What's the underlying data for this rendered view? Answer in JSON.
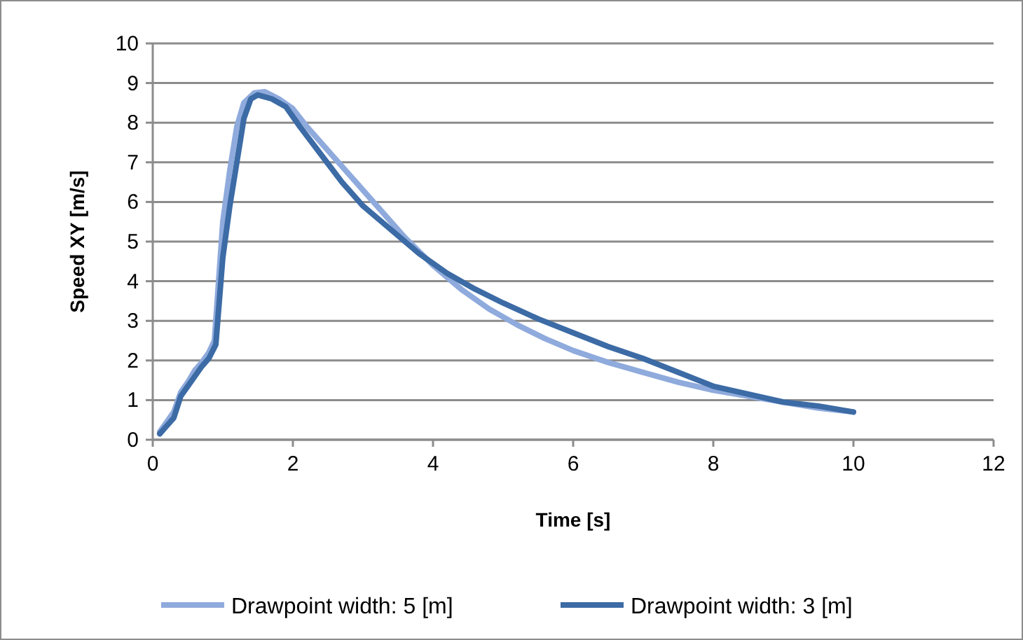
{
  "chart_data": {
    "type": "line",
    "xlabel": "Time [s]",
    "ylabel": "Speed XY [m/s]",
    "xlim": [
      0,
      12
    ],
    "xticks": [
      0,
      2,
      4,
      6,
      8,
      10,
      12
    ],
    "ylim": [
      0,
      10
    ],
    "yticks": [
      0,
      1,
      2,
      3,
      4,
      5,
      6,
      7,
      8,
      9,
      10
    ],
    "grid": "y",
    "legend": "bottom",
    "marker": "none",
    "line_style": "solid",
    "series": [
      {
        "name": "Drawpoint width: 5 [m]",
        "color": "#8faadc",
        "x": [
          0.1,
          0.2,
          0.3,
          0.4,
          0.5,
          0.6,
          0.7,
          0.8,
          0.88,
          0.92,
          1.0,
          1.1,
          1.2,
          1.3,
          1.45,
          1.6,
          1.8,
          2.0,
          2.2,
          2.5,
          2.8,
          3.2,
          3.6,
          4.0,
          4.4,
          4.8,
          5.2,
          5.6,
          6.0,
          6.5,
          7.0,
          7.5,
          8.0,
          8.5,
          9.0,
          9.5,
          10
        ],
        "values": [
          0.2,
          0.45,
          0.7,
          1.2,
          1.45,
          1.75,
          1.95,
          2.2,
          2.5,
          3.5,
          5.5,
          6.8,
          7.9,
          8.5,
          8.75,
          8.78,
          8.6,
          8.35,
          7.9,
          7.3,
          6.7,
          5.9,
          5.1,
          4.4,
          3.8,
          3.3,
          2.9,
          2.55,
          2.25,
          1.95,
          1.7,
          1.45,
          1.25,
          1.1,
          0.95,
          0.8,
          0.7
        ]
      },
      {
        "name": "Drawpoint width: 3 [m]",
        "color": "#3c6ba5",
        "x": [
          0.1,
          0.2,
          0.3,
          0.4,
          0.5,
          0.6,
          0.7,
          0.8,
          0.9,
          0.95,
          1.0,
          1.1,
          1.2,
          1.3,
          1.4,
          1.5,
          1.7,
          1.9,
          2.1,
          2.4,
          2.7,
          3.0,
          3.4,
          3.8,
          4.2,
          4.6,
          5.0,
          5.5,
          6.0,
          6.5,
          7.0,
          7.5,
          8.0,
          8.5,
          9.0,
          9.5,
          10
        ],
        "values": [
          0.15,
          0.35,
          0.55,
          1.1,
          1.35,
          1.6,
          1.85,
          2.05,
          2.4,
          3.5,
          4.6,
          5.9,
          7.0,
          8.1,
          8.6,
          8.7,
          8.6,
          8.4,
          7.9,
          7.2,
          6.5,
          5.9,
          5.3,
          4.7,
          4.2,
          3.8,
          3.45,
          3.05,
          2.7,
          2.35,
          2.05,
          1.7,
          1.35,
          1.15,
          0.95,
          0.85,
          0.7
        ]
      }
    ]
  }
}
